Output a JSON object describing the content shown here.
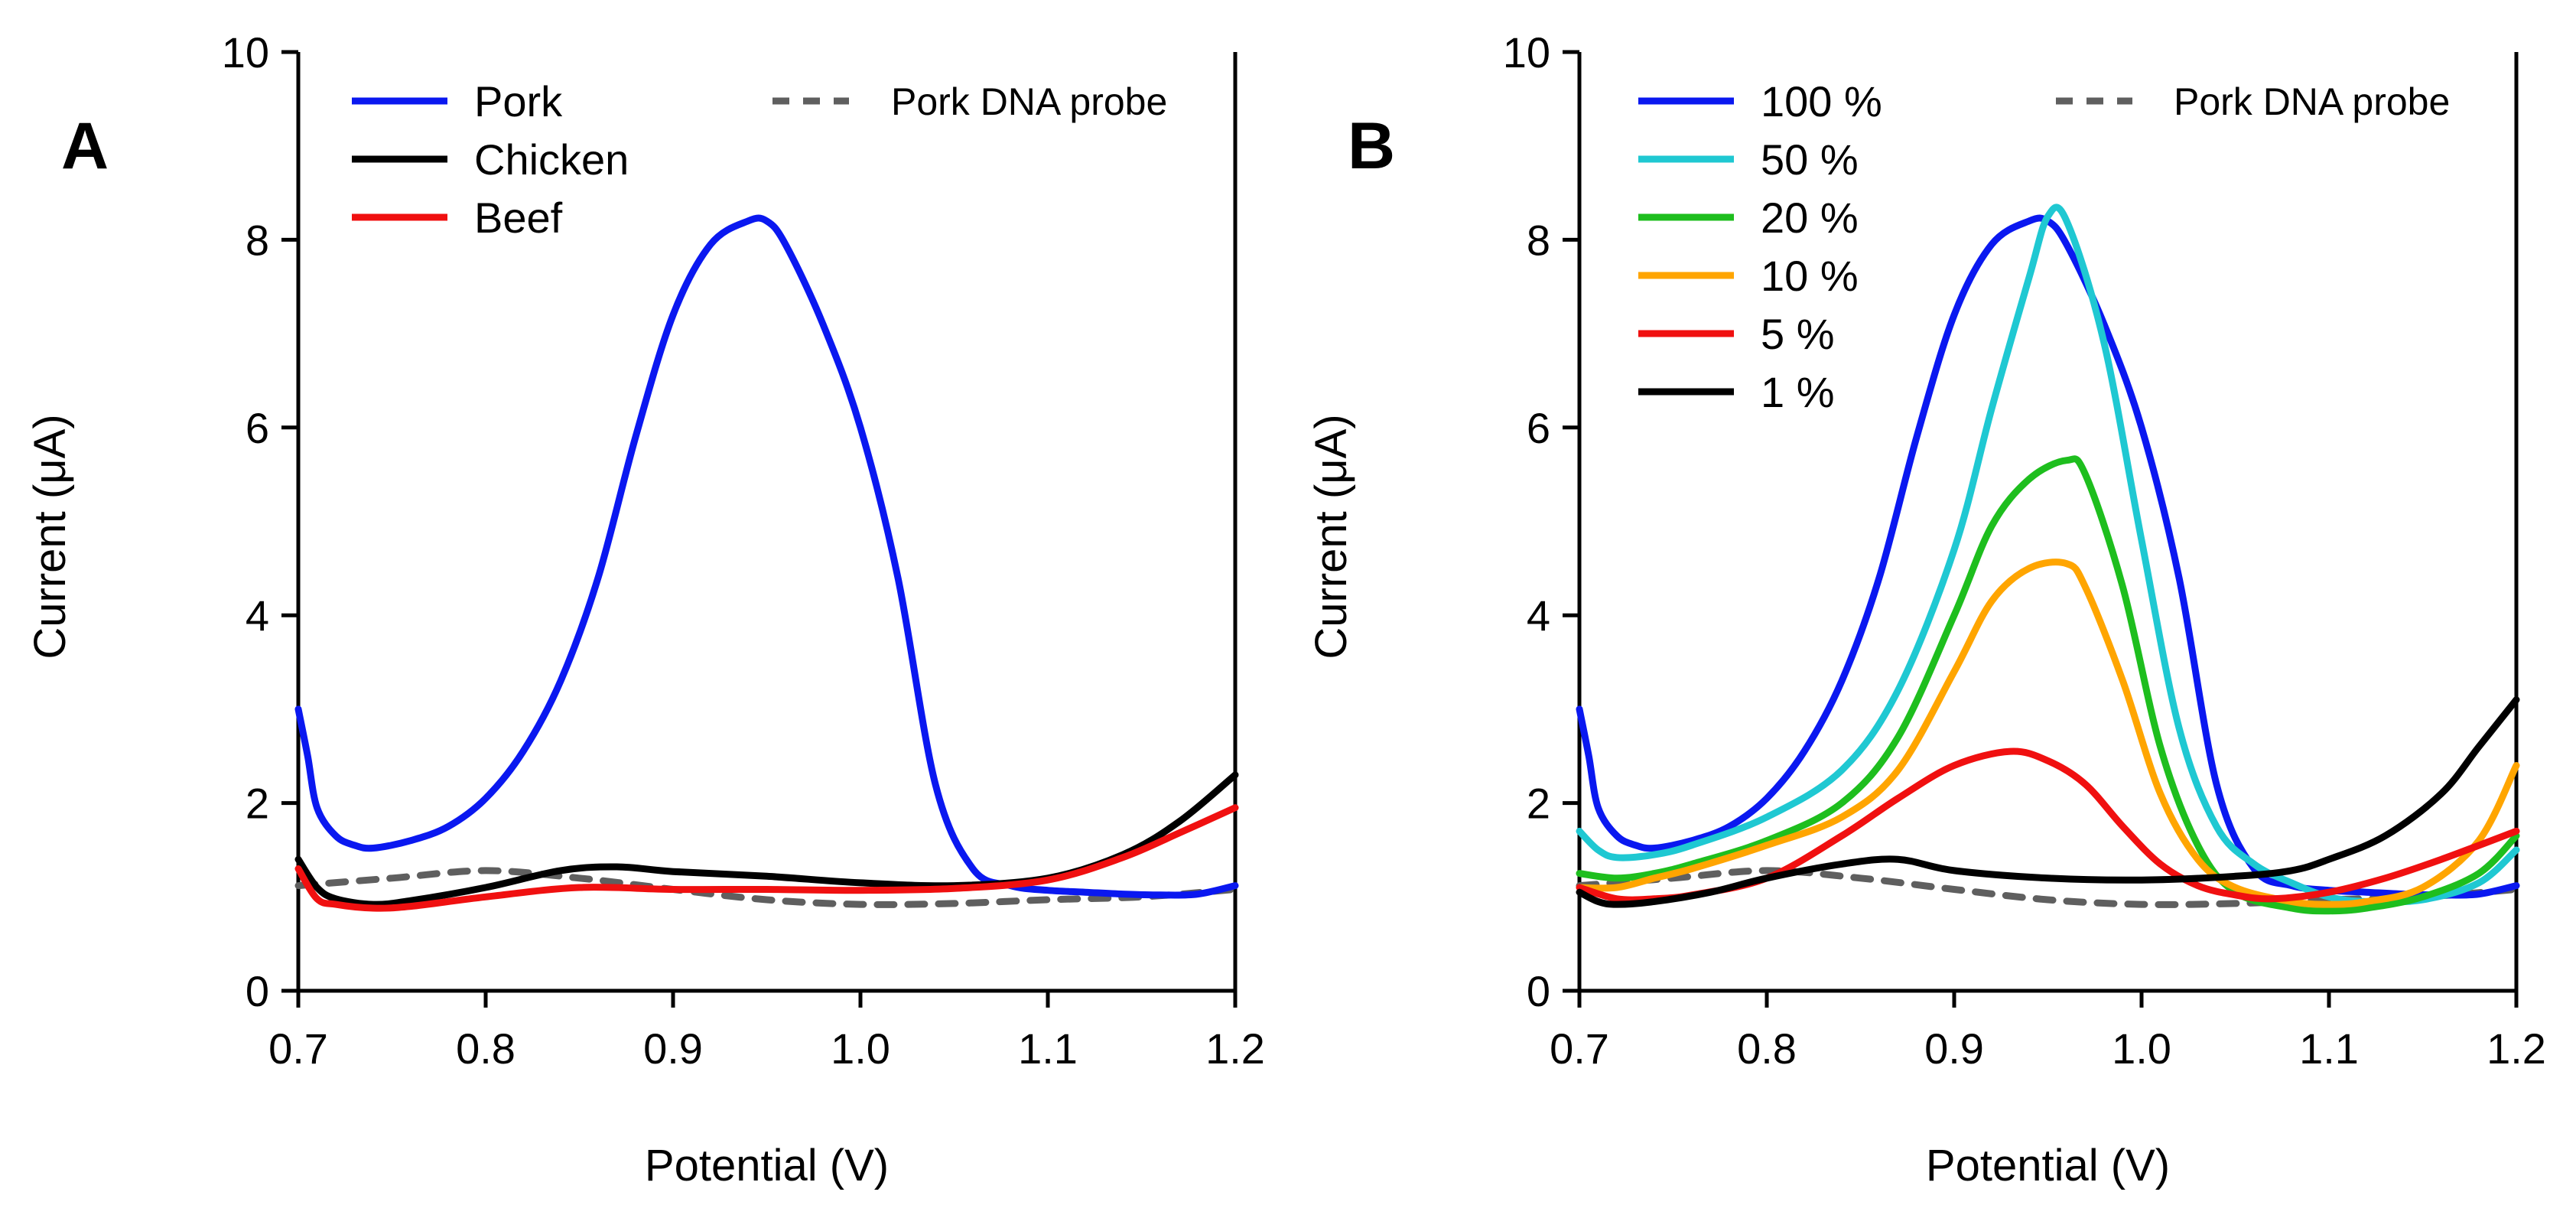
{
  "chart_data": [
    {
      "type": "line",
      "panel_label": "A",
      "xlabel": "Potential (V)",
      "ylabel": "Current (μA)",
      "xlim": [
        0.7,
        1.2
      ],
      "ylim": [
        0,
        10
      ],
      "xticks": [
        "0.7",
        "0.8",
        "0.9",
        "1.0",
        "1.1",
        "1.2"
      ],
      "yticks": [
        "0",
        "2",
        "4",
        "6",
        "8",
        "10"
      ],
      "series": [
        {
          "name": "Pork",
          "color": "#0a18f0",
          "dashed": false,
          "x": [
            0.7,
            0.705,
            0.71,
            0.72,
            0.73,
            0.74,
            0.76,
            0.78,
            0.8,
            0.82,
            0.84,
            0.86,
            0.88,
            0.9,
            0.92,
            0.94,
            0.95,
            0.96,
            0.98,
            1.0,
            1.02,
            1.04,
            1.06,
            1.08,
            1.1,
            1.12,
            1.14,
            1.16,
            1.18,
            1.2
          ],
          "y": [
            3.0,
            2.5,
            1.95,
            1.65,
            1.55,
            1.52,
            1.6,
            1.75,
            2.05,
            2.55,
            3.3,
            4.4,
            5.9,
            7.2,
            7.95,
            8.2,
            8.2,
            7.95,
            7.1,
            6.0,
            4.4,
            2.2,
            1.3,
            1.12,
            1.07,
            1.05,
            1.03,
            1.02,
            1.03,
            1.12
          ]
        },
        {
          "name": "Chicken",
          "color": "#000000",
          "dashed": false,
          "x": [
            0.7,
            0.71,
            0.72,
            0.74,
            0.76,
            0.8,
            0.84,
            0.87,
            0.9,
            0.95,
            1.0,
            1.05,
            1.1,
            1.14,
            1.17,
            1.2
          ],
          "y": [
            1.4,
            1.1,
            0.98,
            0.92,
            0.96,
            1.1,
            1.28,
            1.32,
            1.27,
            1.22,
            1.15,
            1.12,
            1.2,
            1.45,
            1.8,
            2.3
          ]
        },
        {
          "name": "Beef",
          "color": "#f01010",
          "dashed": false,
          "x": [
            0.7,
            0.71,
            0.72,
            0.74,
            0.76,
            0.8,
            0.85,
            0.9,
            0.95,
            1.0,
            1.05,
            1.1,
            1.14,
            1.17,
            1.2
          ],
          "y": [
            1.3,
            0.98,
            0.92,
            0.88,
            0.9,
            1.0,
            1.1,
            1.08,
            1.08,
            1.07,
            1.09,
            1.18,
            1.42,
            1.68,
            1.95
          ]
        },
        {
          "name": "Pork DNA probe",
          "color": "#5f5f5f",
          "dashed": true,
          "x": [
            0.7,
            0.75,
            0.8,
            0.85,
            0.9,
            0.95,
            1.0,
            1.05,
            1.1,
            1.15,
            1.2
          ],
          "y": [
            1.12,
            1.2,
            1.28,
            1.2,
            1.08,
            0.97,
            0.92,
            0.93,
            0.97,
            1.0,
            1.08
          ]
        }
      ]
    },
    {
      "type": "line",
      "panel_label": "B",
      "xlabel": "Potential (V)",
      "ylabel": "Current (μA)",
      "xlim": [
        0.7,
        1.2
      ],
      "ylim": [
        0,
        10
      ],
      "xticks": [
        "0.7",
        "0.8",
        "0.9",
        "1.0",
        "1.1",
        "1.2"
      ],
      "yticks": [
        "0",
        "2",
        "4",
        "6",
        "8",
        "10"
      ],
      "series": [
        {
          "name": "100 %",
          "color": "#0a18f0",
          "dashed": false,
          "x": [
            0.7,
            0.705,
            0.71,
            0.72,
            0.73,
            0.74,
            0.76,
            0.78,
            0.8,
            0.82,
            0.84,
            0.86,
            0.88,
            0.9,
            0.92,
            0.94,
            0.95,
            0.96,
            0.98,
            1.0,
            1.02,
            1.04,
            1.06,
            1.08,
            1.1,
            1.12,
            1.14,
            1.16,
            1.18,
            1.2
          ],
          "y": [
            3.0,
            2.5,
            1.95,
            1.65,
            1.55,
            1.52,
            1.6,
            1.75,
            2.05,
            2.55,
            3.3,
            4.4,
            5.9,
            7.2,
            7.95,
            8.2,
            8.2,
            7.95,
            7.1,
            6.0,
            4.4,
            2.2,
            1.3,
            1.12,
            1.07,
            1.05,
            1.03,
            1.02,
            1.03,
            1.12
          ]
        },
        {
          "name": "50 %",
          "color": "#1fc8d2",
          "dashed": false,
          "x": [
            0.7,
            0.71,
            0.72,
            0.74,
            0.76,
            0.8,
            0.84,
            0.87,
            0.9,
            0.92,
            0.94,
            0.95,
            0.96,
            0.98,
            1.0,
            1.02,
            1.04,
            1.06,
            1.08,
            1.1,
            1.12,
            1.15,
            1.18,
            1.2
          ],
          "y": [
            1.7,
            1.5,
            1.42,
            1.45,
            1.55,
            1.85,
            2.35,
            3.2,
            4.7,
            6.2,
            7.6,
            8.25,
            8.2,
            6.9,
            4.8,
            2.8,
            1.75,
            1.35,
            1.15,
            1.0,
            0.95,
            0.97,
            1.15,
            1.5
          ]
        },
        {
          "name": "20 %",
          "color": "#1ebe1e",
          "dashed": false,
          "x": [
            0.7,
            0.72,
            0.74,
            0.76,
            0.8,
            0.84,
            0.87,
            0.9,
            0.92,
            0.94,
            0.96,
            0.97,
            0.99,
            1.01,
            1.03,
            1.05,
            1.08,
            1.1,
            1.12,
            1.15,
            1.18,
            1.2
          ],
          "y": [
            1.25,
            1.2,
            1.25,
            1.35,
            1.6,
            2.0,
            2.7,
            4.0,
            4.95,
            5.45,
            5.65,
            5.5,
            4.3,
            2.6,
            1.55,
            1.05,
            0.88,
            0.85,
            0.88,
            1.0,
            1.25,
            1.65
          ]
        },
        {
          "name": "10 %",
          "color": "#ffa500",
          "dashed": false,
          "x": [
            0.7,
            0.72,
            0.74,
            0.76,
            0.8,
            0.84,
            0.87,
            0.9,
            0.92,
            0.94,
            0.96,
            0.97,
            0.99,
            1.01,
            1.03,
            1.05,
            1.08,
            1.1,
            1.12,
            1.15,
            1.18,
            1.2
          ],
          "y": [
            1.1,
            1.1,
            1.2,
            1.3,
            1.55,
            1.85,
            2.35,
            3.4,
            4.15,
            4.5,
            4.55,
            4.3,
            3.3,
            2.1,
            1.4,
            1.1,
            0.95,
            0.92,
            0.95,
            1.1,
            1.6,
            2.4
          ]
        },
        {
          "name": "5 %",
          "color": "#f01010",
          "dashed": false,
          "x": [
            0.7,
            0.72,
            0.74,
            0.76,
            0.8,
            0.84,
            0.87,
            0.9,
            0.93,
            0.95,
            0.97,
            0.99,
            1.01,
            1.03,
            1.05,
            1.07,
            1.1,
            1.13,
            1.16,
            1.2
          ],
          "y": [
            1.1,
            0.98,
            0.98,
            1.02,
            1.2,
            1.65,
            2.05,
            2.4,
            2.55,
            2.45,
            2.2,
            1.75,
            1.35,
            1.12,
            1.02,
            0.98,
            1.05,
            1.2,
            1.4,
            1.7
          ]
        },
        {
          "name": "1 %",
          "color": "#000000",
          "dashed": false,
          "x": [
            0.7,
            0.71,
            0.72,
            0.74,
            0.77,
            0.8,
            0.84,
            0.87,
            0.9,
            0.95,
            1.0,
            1.05,
            1.08,
            1.1,
            1.13,
            1.16,
            1.18,
            1.2
          ],
          "y": [
            1.05,
            0.95,
            0.92,
            0.95,
            1.05,
            1.2,
            1.35,
            1.4,
            1.28,
            1.2,
            1.18,
            1.22,
            1.28,
            1.4,
            1.65,
            2.1,
            2.6,
            3.1
          ]
        },
        {
          "name": "Pork DNA probe",
          "color": "#5f5f5f",
          "dashed": true,
          "x": [
            0.7,
            0.75,
            0.8,
            0.85,
            0.9,
            0.95,
            1.0,
            1.05,
            1.1,
            1.15,
            1.2
          ],
          "y": [
            1.12,
            1.2,
            1.28,
            1.2,
            1.08,
            0.97,
            0.92,
            0.93,
            0.97,
            1.0,
            1.08
          ]
        }
      ]
    }
  ]
}
